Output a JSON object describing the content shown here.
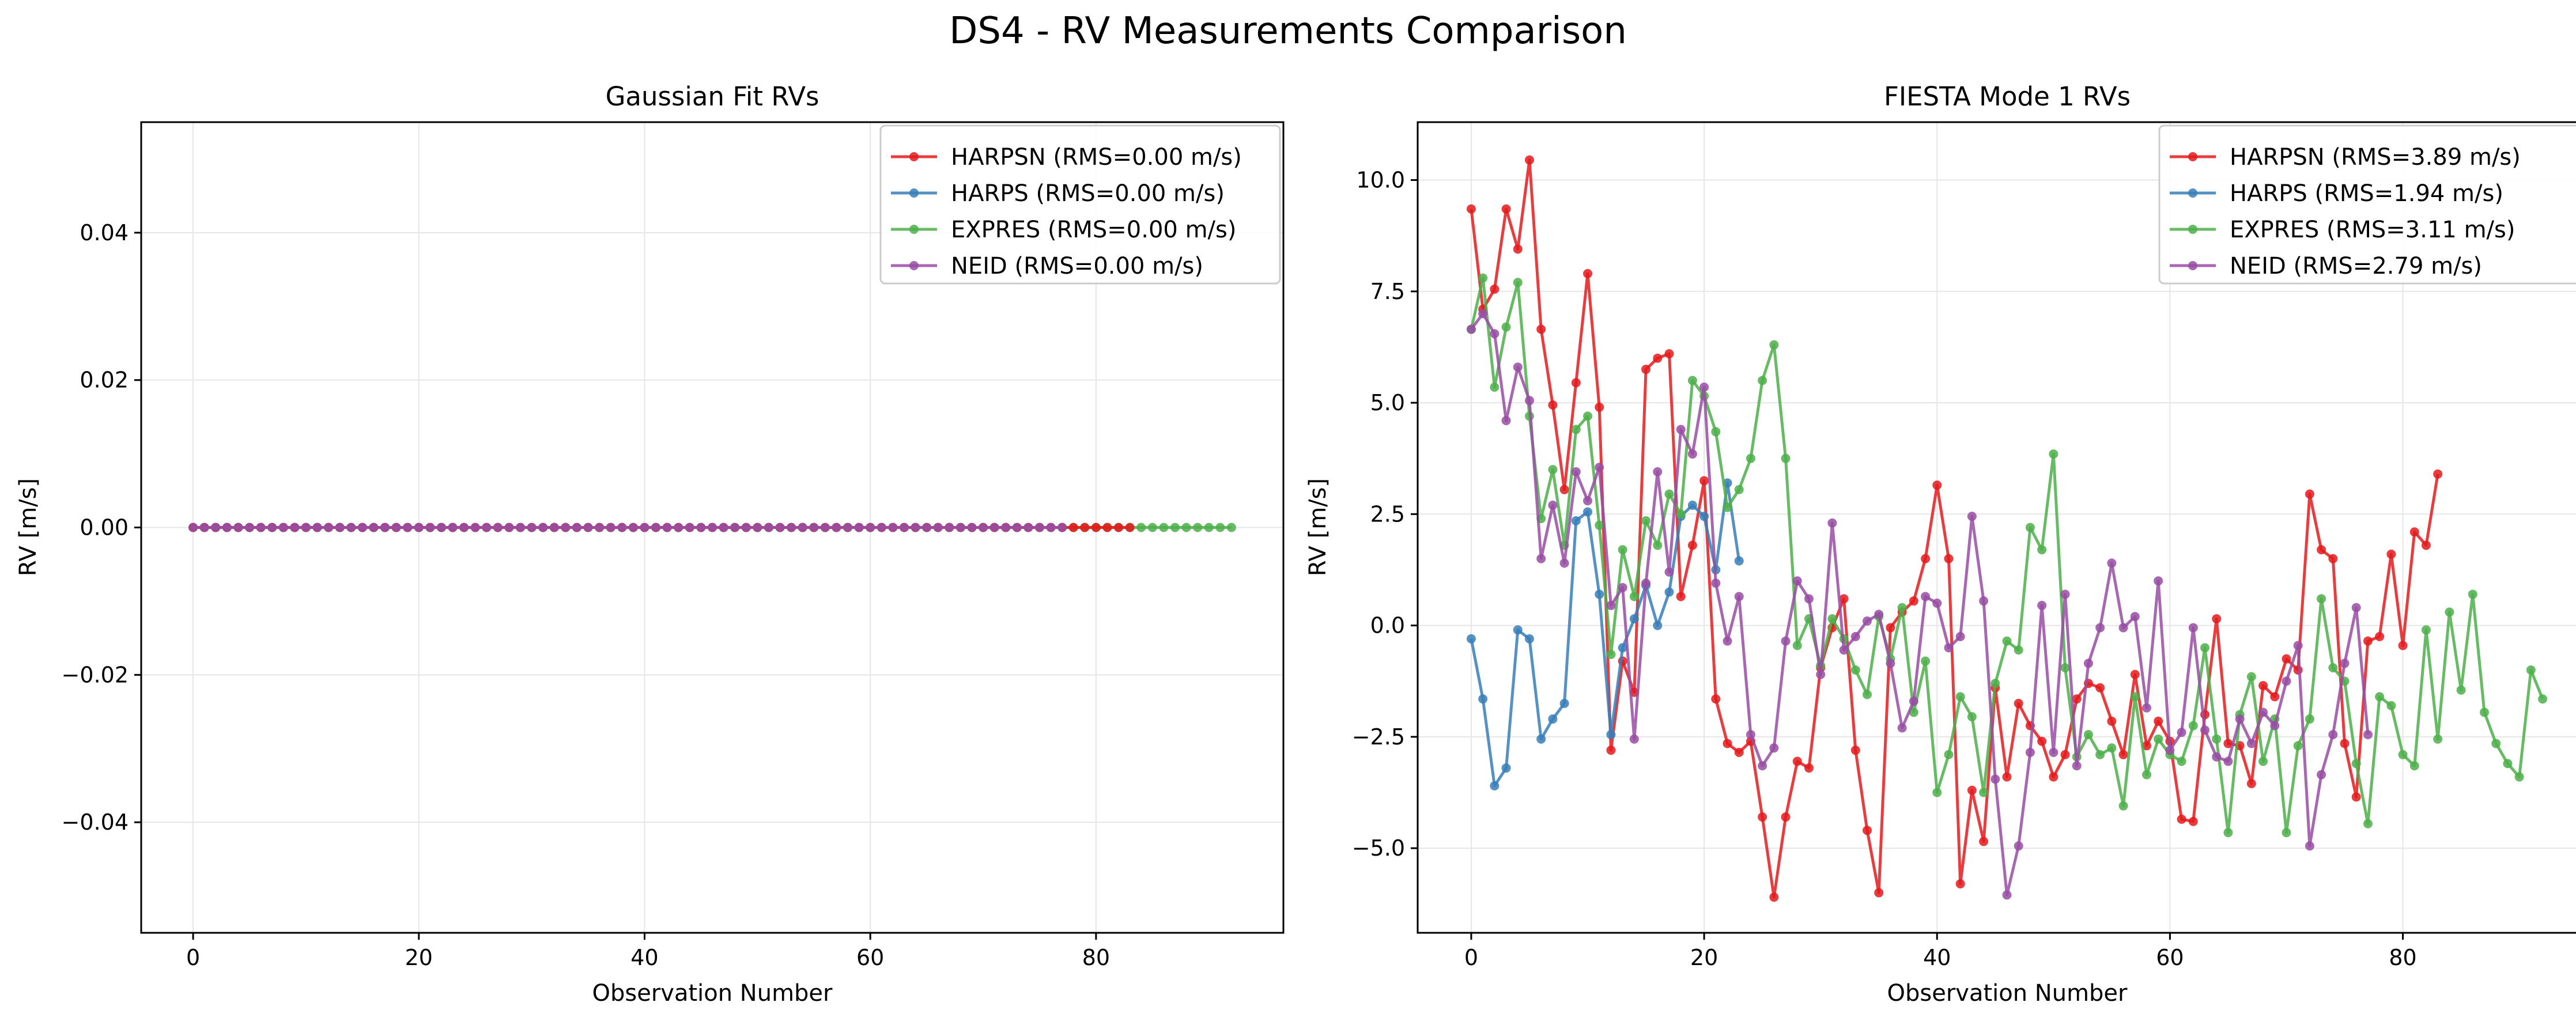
{
  "figure": {
    "title": "DS4 - RV Measurements Comparison"
  },
  "panels": [
    {
      "title": "Gaussian Fit RVs",
      "xlabel": "Observation Number",
      "ylabel": "RV [m/s]",
      "xticks": [
        "0",
        "20",
        "40",
        "60",
        "80"
      ],
      "yticks": [
        "0.04",
        "0.02",
        "0.00",
        "−0.02",
        "−0.04"
      ],
      "legend": [
        "HARPSN (RMS=0.00 m/s)",
        "HARPS (RMS=0.00 m/s)",
        "EXPRES (RMS=0.00 m/s)",
        "NEID (RMS=0.00 m/s)"
      ]
    },
    {
      "title": "FIESTA Mode 1 RVs",
      "xlabel": "Observation Number",
      "ylabel": "RV [m/s]",
      "xticks": [
        "0",
        "20",
        "40",
        "60",
        "80"
      ],
      "yticks": [
        "10.0",
        "7.5",
        "5.0",
        "2.5",
        "0.0",
        "−2.5",
        "−5.0"
      ],
      "legend": [
        "HARPSN (RMS=3.89 m/s)",
        "HARPS (RMS=1.94 m/s)",
        "EXPRES (RMS=3.11 m/s)",
        "NEID (RMS=2.79 m/s)"
      ]
    }
  ],
  "colors": {
    "HARPSN": "#e41a1c",
    "HARPS": "#377eb8",
    "EXPRES": "#4daf4a",
    "NEID": "#984ea3",
    "grid": "#e6e6e6"
  },
  "chart_data": [
    {
      "type": "line",
      "title": "Gaussian Fit RVs",
      "xlabel": "Observation Number",
      "ylabel": "RV [m/s]",
      "xlim": [
        -4.6,
        96.6
      ],
      "ylim": [
        -0.055,
        0.055
      ],
      "grid": true,
      "legend_position": "top-right",
      "series": [
        {
          "name": "HARPSN (RMS=0.00 m/s)",
          "count": 84,
          "constant": 0.0
        },
        {
          "name": "HARPS (RMS=0.00 m/s)",
          "count": 24,
          "constant": 0.0
        },
        {
          "name": "EXPRES (RMS=0.00 m/s)",
          "count": 93,
          "constant": 0.0
        },
        {
          "name": "NEID (RMS=0.00 m/s)",
          "count": 78,
          "constant": 0.0
        }
      ]
    },
    {
      "type": "line",
      "title": "FIESTA Mode 1 RVs",
      "xlabel": "Observation Number",
      "ylabel": "RV [m/s]",
      "xlim": [
        -4.6,
        96.6
      ],
      "ylim": [
        -6.9,
        11.3
      ],
      "grid": true,
      "legend_position": "top-right",
      "series": [
        {
          "name": "HARPSN (RMS=3.89 m/s)",
          "values": [
            9.35,
            7.1,
            7.55,
            9.35,
            8.45,
            10.45,
            6.65,
            4.95,
            3.05,
            5.45,
            7.9,
            4.9,
            -2.8,
            -0.8,
            -1.5,
            5.75,
            6.0,
            6.1,
            0.65,
            1.8,
            3.25,
            -1.65,
            -2.65,
            -2.85,
            -2.6,
            -4.3,
            -6.1,
            -4.3,
            -3.05,
            -3.2,
            -0.95,
            -0.05,
            0.6,
            -2.8,
            -4.6,
            -6.0,
            -0.05,
            0.3,
            0.55,
            1.5,
            3.15,
            1.5,
            -5.8,
            -3.7,
            -4.85,
            -1.4,
            -3.4,
            -1.75,
            -2.25,
            -2.6,
            -3.4,
            -2.9,
            -1.65,
            -1.3,
            -1.4,
            -2.15,
            -2.9,
            -1.1,
            -2.7,
            -2.15,
            -2.6,
            -4.35,
            -4.4,
            -2.0,
            0.15,
            -2.65,
            -2.7,
            -3.55,
            -1.35,
            -1.6,
            -0.75,
            -1.0,
            2.95,
            1.7,
            1.5,
            -2.65,
            -3.85,
            -0.35,
            -0.25,
            1.6,
            -0.45,
            2.1,
            1.8,
            3.4
          ]
        },
        {
          "name": "HARPS (RMS=1.94 m/s)",
          "values": [
            -0.3,
            -1.65,
            -3.6,
            -3.2,
            -0.1,
            -0.3,
            -2.55,
            -2.1,
            -1.75,
            2.35,
            2.55,
            0.7,
            -2.45,
            -0.5,
            0.15,
            0.9,
            0.0,
            0.75,
            2.45,
            2.7,
            2.45,
            1.25,
            3.2,
            1.45
          ]
        },
        {
          "name": "EXPRES (RMS=3.11 m/s)",
          "values": [
            6.65,
            7.8,
            5.35,
            6.7,
            7.7,
            4.7,
            2.4,
            3.5,
            1.8,
            4.4,
            4.7,
            2.25,
            -0.65,
            1.7,
            0.65,
            2.35,
            1.8,
            2.95,
            2.5,
            5.5,
            5.15,
            4.35,
            2.65,
            3.05,
            3.75,
            5.5,
            6.3,
            3.75,
            -0.45,
            0.15,
            -0.9,
            0.15,
            -0.3,
            -1.0,
            -1.55,
            0.2,
            -0.75,
            0.4,
            -1.95,
            -0.8,
            -3.75,
            -2.9,
            -1.6,
            -2.05,
            -3.75,
            -1.3,
            -0.35,
            -0.55,
            2.2,
            1.7,
            3.85,
            -0.95,
            -2.95,
            -2.45,
            -2.9,
            -2.75,
            -4.05,
            -1.6,
            -3.35,
            -2.55,
            -2.9,
            -3.05,
            -2.25,
            -0.5,
            -2.55,
            -4.65,
            -2.0,
            -1.15,
            -3.05,
            -2.1,
            -4.65,
            -2.7,
            -2.1,
            0.6,
            -0.95,
            -1.25,
            -3.1,
            -4.45,
            -1.6,
            -1.8,
            -2.9,
            -3.15,
            -0.1,
            -2.55,
            0.3,
            -1.45,
            0.7,
            -1.95,
            -2.65,
            -3.1,
            -3.4,
            -1.0,
            -1.65
          ]
        },
        {
          "name": "NEID (RMS=2.79 m/s)",
          "values": [
            6.65,
            7.0,
            6.55,
            4.6,
            5.8,
            5.05,
            1.5,
            2.7,
            1.4,
            3.45,
            2.8,
            3.55,
            0.45,
            0.85,
            -2.55,
            0.95,
            3.45,
            1.2,
            4.4,
            3.85,
            5.35,
            0.95,
            -0.35,
            0.65,
            -2.45,
            -3.15,
            -2.75,
            -0.35,
            1.0,
            0.6,
            -1.1,
            2.3,
            -0.55,
            -0.25,
            0.1,
            0.25,
            -0.85,
            -2.3,
            -1.7,
            0.65,
            0.5,
            -0.5,
            -0.25,
            2.45,
            0.55,
            -3.45,
            -6.05,
            -4.95,
            -2.85,
            0.45,
            -2.85,
            0.7,
            -3.15,
            -0.85,
            -0.05,
            1.4,
            -0.05,
            0.2,
            -1.85,
            1.0,
            -2.8,
            -2.4,
            -0.05,
            -2.35,
            -2.95,
            -3.05,
            -2.1,
            -2.65,
            -1.95,
            -2.25,
            -1.25,
            -0.45,
            -4.95,
            -3.35,
            -2.45,
            -0.85,
            0.4,
            -2.45
          ]
        }
      ]
    }
  ]
}
